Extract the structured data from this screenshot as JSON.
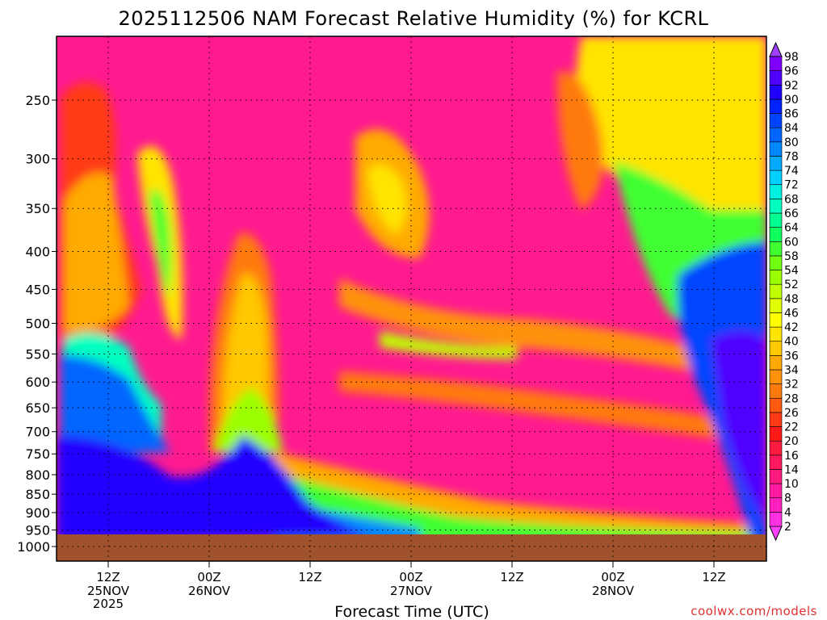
{
  "chart_data": {
    "type": "heatmap",
    "title": "2025112506 NAM Forecast Relative Humidity (%) for KCRL",
    "xlabel": "Forecast Time (UTC)",
    "ylabel": "",
    "y_axis": {
      "scale": "log",
      "inverted": true,
      "ylim": [
        1000,
        200
      ],
      "ticks": [
        250,
        300,
        350,
        400,
        450,
        500,
        550,
        600,
        650,
        700,
        750,
        800,
        850,
        900,
        950,
        1000
      ],
      "tick_labels": [
        "250",
        "300",
        "350",
        "400",
        "450",
        "500",
        "550",
        "600",
        "650",
        "700",
        "750",
        "800",
        "850",
        "900",
        "950",
        "1000"
      ]
    },
    "x_axis": {
      "start": "2025-11-25T06Z",
      "end": "2025-11-28T21Z",
      "ticks": [
        {
          "time": "2025-11-25T12Z",
          "label": "12Z",
          "sub": "25NOV",
          "sub2": "2025"
        },
        {
          "time": "2025-11-26T00Z",
          "label": "00Z",
          "sub": "26NOV",
          "sub2": ""
        },
        {
          "time": "2025-11-26T12Z",
          "label": "12Z",
          "sub": "",
          "sub2": ""
        },
        {
          "time": "2025-11-27T00Z",
          "label": "00Z",
          "sub": "27NOV",
          "sub2": ""
        },
        {
          "time": "2025-11-27T12Z",
          "label": "12Z",
          "sub": "",
          "sub2": ""
        },
        {
          "time": "2025-11-28T00Z",
          "label": "00Z",
          "sub": "28NOV",
          "sub2": ""
        },
        {
          "time": "2025-11-28T12Z",
          "label": "12Z",
          "sub": "",
          "sub2": ""
        }
      ]
    },
    "grid": true,
    "legend": "right",
    "colorbar": {
      "levels": [
        2,
        4,
        8,
        10,
        14,
        16,
        20,
        22,
        26,
        28,
        32,
        34,
        36,
        40,
        42,
        46,
        48,
        52,
        54,
        58,
        60,
        64,
        66,
        68,
        72,
        74,
        78,
        80,
        84,
        86,
        90,
        92,
        96,
        98
      ],
      "colors": [
        "#ff40ff",
        "#ff30e0",
        "#ff20c0",
        "#ff1aa0",
        "#ff1a80",
        "#ff1a60",
        "#ff1a40",
        "#ff1a1a",
        "#ff3a14",
        "#ff5a10",
        "#ff7a0c",
        "#ff9208",
        "#ffaa04",
        "#ffc800",
        "#ffe400",
        "#ffff00",
        "#e0ff00",
        "#bfff00",
        "#9cff00",
        "#70ff10",
        "#40ff30",
        "#10ff60",
        "#00ff90",
        "#00ffc0",
        "#00f0e0",
        "#00d0ff",
        "#00aaff",
        "#0088ff",
        "#0066ff",
        "#0044ff",
        "#0022ff",
        "#2000ff",
        "#5000ff",
        "#8000ff",
        "#a040ff"
      ]
    },
    "terrain_color": "#a0522d"
  },
  "credit": "coolwx.com/models"
}
